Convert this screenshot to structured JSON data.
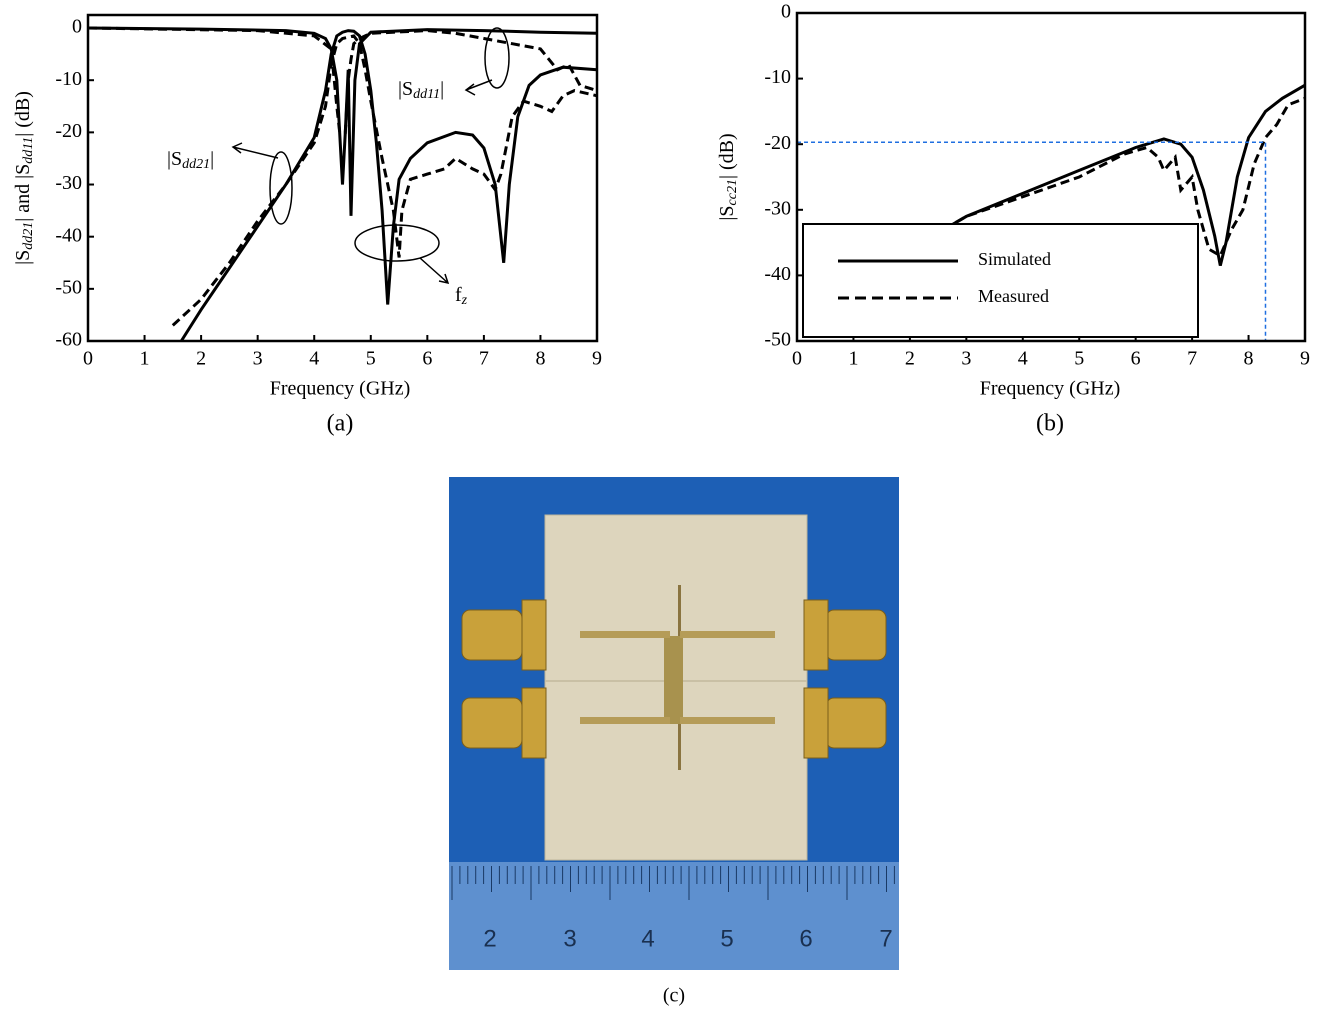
{
  "chart_data": [
    {
      "type": "line",
      "xlabel": "Frequency (GHz)",
      "ylabel": [
        "|S",
        "dd21",
        "| and |S",
        "dd11",
        "| (dB)"
      ],
      "caption": "(a)",
      "xlim": [
        0,
        9
      ],
      "ylim": [
        -60,
        2.5
      ],
      "xticks": [
        0,
        1,
        2,
        3,
        4,
        5,
        6,
        7,
        8,
        9
      ],
      "yticks": [
        0,
        -10,
        -20,
        -30,
        -40,
        -50,
        -60
      ],
      "annotations": [
        {
          "text": [
            "|S",
            "dd11",
            "|"
          ]
        },
        {
          "text": [
            "|S",
            "dd21",
            "|"
          ]
        },
        {
          "text": [
            "f",
            "z"
          ]
        }
      ],
      "series": [
        {
          "color": "#000000",
          "line_style": "solid",
          "x": [
            1.65,
            2,
            2.5,
            3,
            3.5,
            4,
            4.2,
            4.3,
            4.4,
            4.5,
            4.6,
            4.7,
            4.8,
            4.9,
            5.0,
            5.1,
            5.2,
            5.3,
            5.4,
            5.5,
            5.7,
            6.0,
            6.5,
            6.8,
            7.0,
            7.2,
            7.35,
            7.45,
            7.6,
            7.8,
            8.0,
            8.4,
            9
          ],
          "values": [
            -60,
            -54,
            -46,
            -38,
            -30,
            -21,
            -12,
            -5,
            -1.5,
            -0.8,
            -0.5,
            -0.6,
            -1.5,
            -5,
            -12,
            -22,
            -35,
            -53,
            -38,
            -29,
            -25,
            -22,
            -20,
            -20.5,
            -23,
            -30,
            -45,
            -30,
            -17,
            -11,
            -9,
            -7.5,
            -8
          ]
        },
        {
          "color": "#000000",
          "line_style": "dashed",
          "x": [
            1.5,
            2,
            2.5,
            3,
            3.5,
            4,
            4.2,
            4.3,
            4.4,
            4.5,
            4.7,
            4.8,
            4.9,
            5.0,
            5.2,
            5.4,
            5.5,
            5.55,
            5.7,
            6,
            6.3,
            6.5,
            6.8,
            7,
            7.2,
            7.3,
            7.5,
            7.7,
            8,
            8.2,
            8.4,
            8.6,
            9
          ],
          "values": [
            -57,
            -52,
            -45,
            -37,
            -30,
            -22,
            -15,
            -7,
            -3,
            -2,
            -1.5,
            -3,
            -8,
            -14,
            -25,
            -35,
            -44,
            -35,
            -29,
            -28,
            -27,
            -25,
            -27,
            -28,
            -31,
            -28,
            -17,
            -14,
            -15,
            -16,
            -13,
            -12,
            -13
          ]
        },
        {
          "color": "#000000",
          "line_style": "solid",
          "x": [
            0,
            2,
            3.5,
            4,
            4.2,
            4.3,
            4.4,
            4.5,
            4.55,
            4.6,
            4.65,
            4.72,
            4.8,
            5,
            6,
            7,
            8,
            9
          ],
          "values": [
            0,
            -0.2,
            -0.5,
            -1,
            -2,
            -4,
            -10,
            -30,
            -20,
            -8,
            -36,
            -10,
            -3,
            -0.8,
            -0.3,
            -0.5,
            -0.8,
            -1
          ]
        },
        {
          "color": "#000000",
          "line_style": "dashed",
          "x": [
            0,
            3,
            4,
            4.3,
            4.4,
            4.45,
            4.55,
            4.6,
            4.65,
            4.7,
            4.8,
            5,
            6,
            6.5,
            7,
            7.5,
            8,
            8.3,
            8.5,
            8.7,
            9
          ],
          "values": [
            0,
            -0.5,
            -1.5,
            -4,
            -15,
            -20,
            -20,
            -10,
            -6,
            -3,
            -2,
            -1,
            -0.5,
            -1,
            -2,
            -3,
            -4,
            -8,
            -7,
            -11,
            -12
          ]
        }
      ]
    },
    {
      "type": "line",
      "xlabel": "Frequency (GHz)",
      "ylabel": [
        "|S",
        "cc21",
        "| (dB)"
      ],
      "caption": "(b)",
      "xlim": [
        0,
        9
      ],
      "ylim": [
        -50,
        0
      ],
      "xticks": [
        0,
        1,
        2,
        3,
        4,
        5,
        6,
        7,
        8,
        9
      ],
      "yticks": [
        0,
        -10,
        -20,
        -30,
        -40,
        -50
      ],
      "legend": "lower left",
      "reference_line": {
        "x": 8.3,
        "y": -19.7,
        "color": "#1f6fe0"
      },
      "series": [
        {
          "name": "Simulated",
          "color": "#000000",
          "line_style": "solid",
          "x": [
            2.6,
            3,
            4,
            5,
            6,
            6.5,
            6.8,
            7.0,
            7.2,
            7.4,
            7.5,
            7.6,
            7.8,
            8,
            8.3,
            8.6,
            9
          ],
          "values": [
            -33,
            -31,
            -27.5,
            -24,
            -20.5,
            -19.2,
            -20,
            -22,
            -27,
            -34,
            -38.5,
            -35,
            -25,
            -19,
            -15,
            -13,
            -11
          ]
        },
        {
          "name": "Measured",
          "color": "#000000",
          "line_style": "dashed",
          "x": [
            2.6,
            3,
            4,
            5,
            5.8,
            6.2,
            6.4,
            6.5,
            6.7,
            6.8,
            7.0,
            7.1,
            7.3,
            7.5,
            7.7,
            7.9,
            8.1,
            8.3,
            8.5,
            8.7,
            9
          ],
          "values": [
            -33,
            -31,
            -28,
            -25,
            -21.5,
            -20.5,
            -22,
            -24,
            -22,
            -27,
            -25,
            -30,
            -36,
            -37,
            -33,
            -30,
            -23,
            -19,
            -17,
            -14,
            -13
          ]
        }
      ]
    }
  ],
  "photo": {
    "ruler_labels": [
      "2",
      "3",
      "4",
      "5",
      "6",
      "7"
    ],
    "caption": "(c)"
  }
}
